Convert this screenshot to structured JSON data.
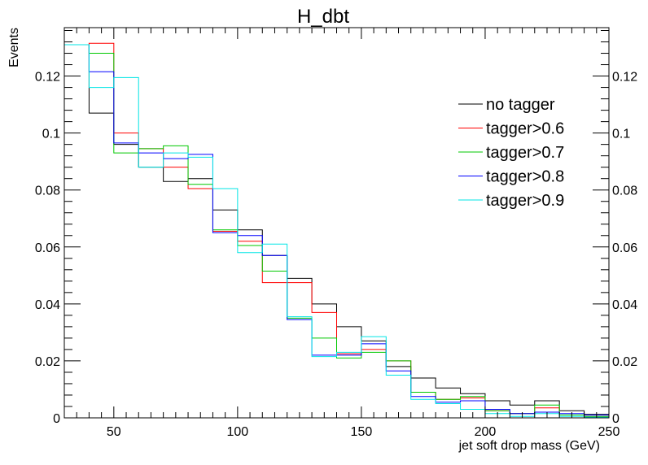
{
  "chart_data": {
    "type": "line",
    "title": "H_dbt",
    "xlabel": "jet soft drop mass (GeV)",
    "ylabel": "Events",
    "xlim": [
      30,
      250
    ],
    "ylim": [
      0,
      0.137
    ],
    "x_ticks": [
      50,
      100,
      150,
      200,
      250
    ],
    "x_tick_labels": [
      "50",
      "100",
      "150",
      "200",
      "250"
    ],
    "y_ticks": [
      0,
      0.02,
      0.04,
      0.06,
      0.08,
      0.1,
      0.12
    ],
    "y_tick_labels": [
      "0",
      "0.02",
      "0.04",
      "0.06",
      "0.08",
      "0.1",
      "0.12"
    ],
    "bin_edges": [
      30,
      40,
      50,
      60,
      70,
      80,
      90,
      100,
      110,
      120,
      130,
      140,
      150,
      160,
      170,
      180,
      190,
      200,
      210,
      220,
      230,
      240,
      250
    ],
    "legend_position": "top-right",
    "grid": false,
    "series": [
      {
        "name": "no tagger",
        "color": "#000000",
        "values": [
          0.131,
          0.107,
          0.096,
          0.088,
          0.083,
          0.084,
          0.073,
          0.066,
          0.057,
          0.049,
          0.04,
          0.032,
          0.027,
          0.018,
          0.014,
          0.0105,
          0.0085,
          0.006,
          0.0045,
          0.006,
          0.0025,
          0.0012
        ]
      },
      {
        "name": "tagger>0.6",
        "color": "#ff0000",
        "values": [
          0.131,
          0.1315,
          0.1,
          0.0945,
          0.088,
          0.0805,
          0.0655,
          0.062,
          0.0475,
          0.0475,
          0.037,
          0.0225,
          0.024,
          0.02,
          0.009,
          0.0065,
          0.007,
          0.0025,
          0.0015,
          0.0035,
          0.001,
          0.0005
        ]
      },
      {
        "name": "tagger>0.7",
        "color": "#00c800",
        "values": [
          0.131,
          0.128,
          0.093,
          0.0945,
          0.0955,
          0.082,
          0.066,
          0.0605,
          0.0515,
          0.035,
          0.028,
          0.021,
          0.023,
          0.02,
          0.009,
          0.0065,
          0.0075,
          0.0025,
          0.0015,
          0.0045,
          0.001,
          0.0005
        ]
      },
      {
        "name": "tagger>0.8",
        "color": "#0000ff",
        "values": [
          0.131,
          0.1215,
          0.0965,
          0.093,
          0.091,
          0.0925,
          0.065,
          0.064,
          0.057,
          0.0345,
          0.022,
          0.022,
          0.026,
          0.0165,
          0.0075,
          0.0055,
          0.006,
          0.003,
          0.0015,
          0.002,
          0.0015,
          0.001
        ]
      },
      {
        "name": "tagger>0.9",
        "color": "#00e5e5",
        "values": [
          0.131,
          0.116,
          0.1195,
          0.088,
          0.093,
          0.0915,
          0.0805,
          0.058,
          0.061,
          0.0355,
          0.0215,
          0.023,
          0.0285,
          0.015,
          0.0065,
          0.005,
          0.003,
          0.0015,
          0.0005,
          0.0015,
          0.0005,
          0.0002
        ]
      }
    ]
  }
}
